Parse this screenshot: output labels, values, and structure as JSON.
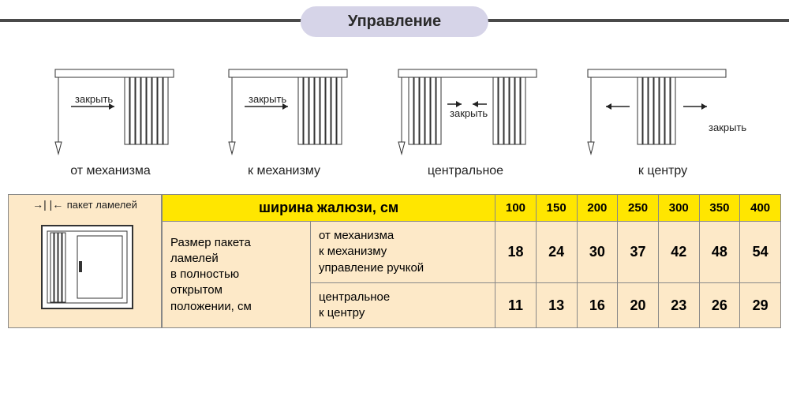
{
  "header": {
    "title": "Управление"
  },
  "colors": {
    "pill_bg": "#d6d4e8",
    "header_line": "#4a4a4a",
    "table_header_bg": "#ffe600",
    "table_cell_bg": "#fde9c8",
    "border": "#888888",
    "text": "#222222",
    "diagram_stroke": "#333333",
    "diagram_fill": "#ffffff"
  },
  "diagrams": {
    "close_label": "закрыть",
    "items": [
      {
        "caption": "от механизма",
        "arrow": "right",
        "slats_side": "right"
      },
      {
        "caption": "к механизму",
        "arrow": "right",
        "slats_side": "right"
      },
      {
        "caption": "центральное",
        "arrow": "in",
        "slats_side": "both"
      },
      {
        "caption": "к центру",
        "arrow": "out",
        "slats_side": "center"
      }
    ]
  },
  "window_annot": {
    "label": "пакет ламелей",
    "arrow_text": "→|   |←"
  },
  "table": {
    "width_header": "ширина жалюзи, см",
    "widths": [
      100,
      150,
      200,
      250,
      300,
      350,
      400
    ],
    "row_main_label_lines": [
      "Размер пакета",
      "ламелей",
      "в полностью",
      "открытом",
      "положении, см"
    ],
    "rows": [
      {
        "sub_label_lines": [
          "от механизма",
          "к механизму",
          "управление ручкой"
        ],
        "values": [
          18,
          24,
          30,
          37,
          42,
          48,
          54
        ]
      },
      {
        "sub_label_lines": [
          "центральное",
          "к центру"
        ],
        "values": [
          11,
          13,
          16,
          20,
          23,
          26,
          29
        ]
      }
    ]
  }
}
